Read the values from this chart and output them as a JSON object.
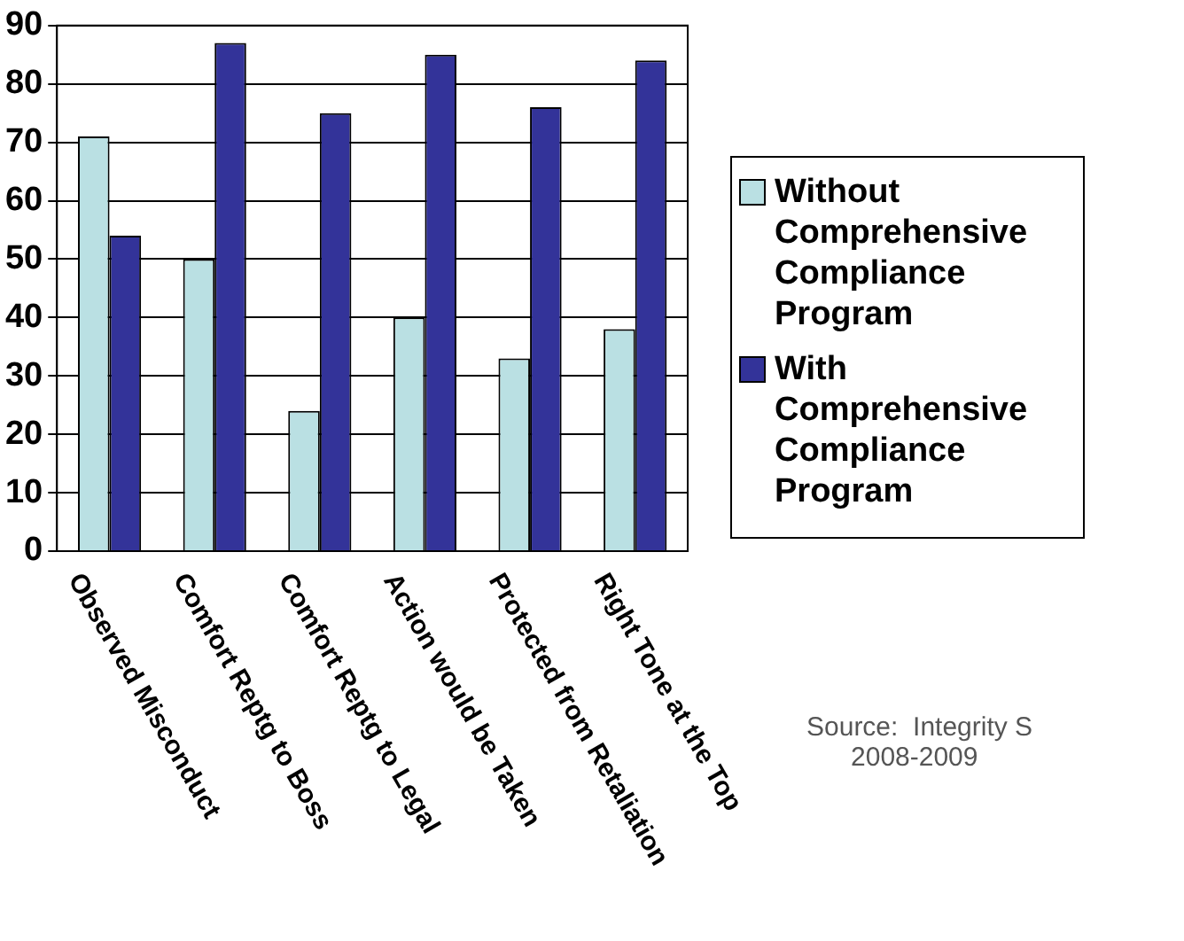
{
  "chart_data": {
    "type": "bar",
    "categories": [
      "Observed Misconduct",
      "Comfort Reptg to Boss",
      "Comfort Reptg to Legal",
      "Action would be Taken",
      "Protected from Retaliation",
      "Right Tone at the Top"
    ],
    "series": [
      {
        "name": "Without Comprehensive Compliance Program",
        "color": "#bae0e3",
        "values": [
          71,
          50,
          24,
          40,
          33,
          38
        ]
      },
      {
        "name": "With Comprehensive Compliance Program",
        "color": "#333399",
        "values": [
          54,
          87,
          75,
          85,
          76,
          84
        ]
      }
    ],
    "ylim": [
      0,
      90
    ],
    "yticks": [
      0,
      10,
      20,
      30,
      40,
      50,
      60,
      70,
      80,
      90
    ],
    "grid": "y",
    "legend": "right",
    "annotations": [
      "Source:  Integrity S",
      "2008-2009"
    ]
  }
}
